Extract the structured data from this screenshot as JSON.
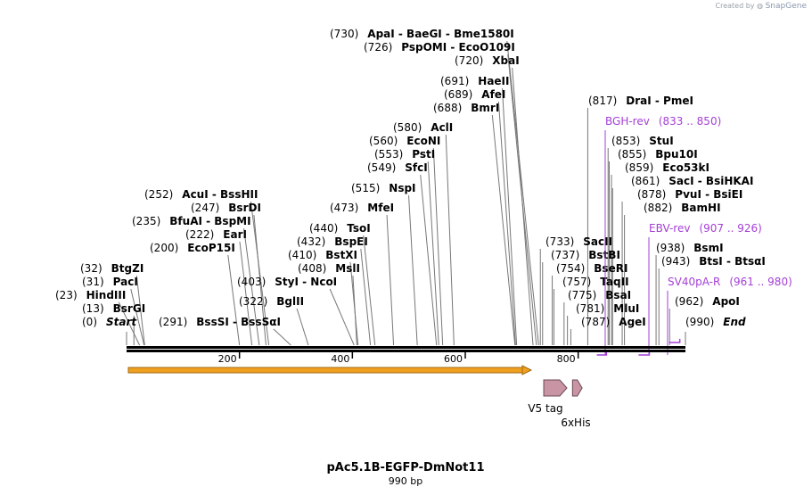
{
  "credit": {
    "prefix": "Created by",
    "brand": "SnapGene"
  },
  "sequence": {
    "name": "pAc5.1B-EGFP-DmNot11",
    "length_label": "990 bp",
    "length": 990
  },
  "colors": {
    "primer": "#a43fd6",
    "ori": "#f0a020",
    "feature": "#c994a4",
    "backbone": "#000000"
  },
  "sites": [
    {
      "num": "(0)",
      "name": "Start",
      "pos": 0
    },
    {
      "num": "(13)",
      "name": "BsrGI",
      "pos": 13
    },
    {
      "num": "(23)",
      "name": "HindIII",
      "pos": 23
    },
    {
      "num": "(31)",
      "name": "PacI",
      "pos": 31
    },
    {
      "num": "(32)",
      "name": "BtgZI",
      "pos": 32
    },
    {
      "num": "(200)",
      "name": "EcoP15I",
      "pos": 200
    },
    {
      "num": "(222)",
      "name": "EarI",
      "pos": 222
    },
    {
      "num": "(235)",
      "name": "BfuAI  - BspMI",
      "pos": 235
    },
    {
      "num": "(247)",
      "name": "BsrDI",
      "pos": 247
    },
    {
      "num": "(252)",
      "name": "AcuI  - BssHII",
      "pos": 252
    },
    {
      "num": "(291)",
      "name": "BssSI  - BssSαI",
      "pos": 291
    },
    {
      "num": "(322)",
      "name": "BglII",
      "pos": 322
    },
    {
      "num": "(403)",
      "name": "StyI  - NcoI",
      "pos": 403
    },
    {
      "num": "(408)",
      "name": "MslI",
      "pos": 408
    },
    {
      "num": "(410)",
      "name": "BstXI",
      "pos": 410
    },
    {
      "num": "(432)",
      "name": "BspEI",
      "pos": 432
    },
    {
      "num": "(440)",
      "name": "TsoI",
      "pos": 440
    },
    {
      "num": "(473)",
      "name": "MfeI",
      "pos": 473
    },
    {
      "num": "(515)",
      "name": "NspI",
      "pos": 515
    },
    {
      "num": "(549)",
      "name": "SfcI",
      "pos": 549
    },
    {
      "num": "(553)",
      "name": "PstI",
      "pos": 553
    },
    {
      "num": "(560)",
      "name": "EcoNI",
      "pos": 560
    },
    {
      "num": "(580)",
      "name": "AclI",
      "pos": 580
    },
    {
      "num": "(688)",
      "name": "BmrI",
      "pos": 688
    },
    {
      "num": "(689)",
      "name": "AfeI",
      "pos": 689
    },
    {
      "num": "(691)",
      "name": "HaeII",
      "pos": 691
    },
    {
      "num": "(720)",
      "name": "XbaI",
      "pos": 720
    },
    {
      "num": "(726)",
      "name": "PspOMI  - EcoO109I",
      "pos": 726
    },
    {
      "num": "(730)",
      "name": "ApaI  - BaeGI  - Bme1580I",
      "pos": 730
    },
    {
      "num": "(733)",
      "name": "SacII",
      "pos": 733
    },
    {
      "num": "(737)",
      "name": "BstBI",
      "pos": 737
    },
    {
      "num": "(754)",
      "name": "BseRI",
      "pos": 754
    },
    {
      "num": "(757)",
      "name": "TaqII",
      "pos": 757
    },
    {
      "num": "(775)",
      "name": "BsaI",
      "pos": 775
    },
    {
      "num": "(781)",
      "name": "MluI",
      "pos": 781
    },
    {
      "num": "(787)",
      "name": "AgeI",
      "pos": 787
    },
    {
      "num": "(817)",
      "name": "DraI  - PmeI",
      "pos": 817
    },
    {
      "num": "(853)",
      "name": "StuI",
      "pos": 853
    },
    {
      "num": "(855)",
      "name": "Bpu10I",
      "pos": 855
    },
    {
      "num": "(859)",
      "name": "Eco53kI",
      "pos": 859
    },
    {
      "num": "(861)",
      "name": "SacI  - BsiHKAI",
      "pos": 861
    },
    {
      "num": "(878)",
      "name": "PvuI  - BsiEI",
      "pos": 878
    },
    {
      "num": "(882)",
      "name": "BamHI",
      "pos": 882
    },
    {
      "num": "(938)",
      "name": "BsmI",
      "pos": 938
    },
    {
      "num": "(943)",
      "name": "BtsI  - BtsαI",
      "pos": 943
    },
    {
      "num": "(962)",
      "name": "ApoI",
      "pos": 962
    },
    {
      "num": "(990)",
      "name": "End",
      "pos": 990
    }
  ],
  "primers": [
    {
      "name": "BGH-rev",
      "range": "(833 .. 850)",
      "start": 833,
      "end": 850
    },
    {
      "name": "EBV-rev",
      "range": "(907 .. 926)",
      "start": 907,
      "end": 926
    },
    {
      "name": "SV40pA-R",
      "range": "(961 .. 980)",
      "start": 961,
      "end": 980
    }
  ],
  "features": [
    {
      "name": "V5 tag",
      "start": 739,
      "end": 780
    },
    {
      "name": "6xHis",
      "start": 790,
      "end": 807
    }
  ],
  "ruler": {
    "ticks": [
      200,
      400,
      600,
      800
    ]
  }
}
